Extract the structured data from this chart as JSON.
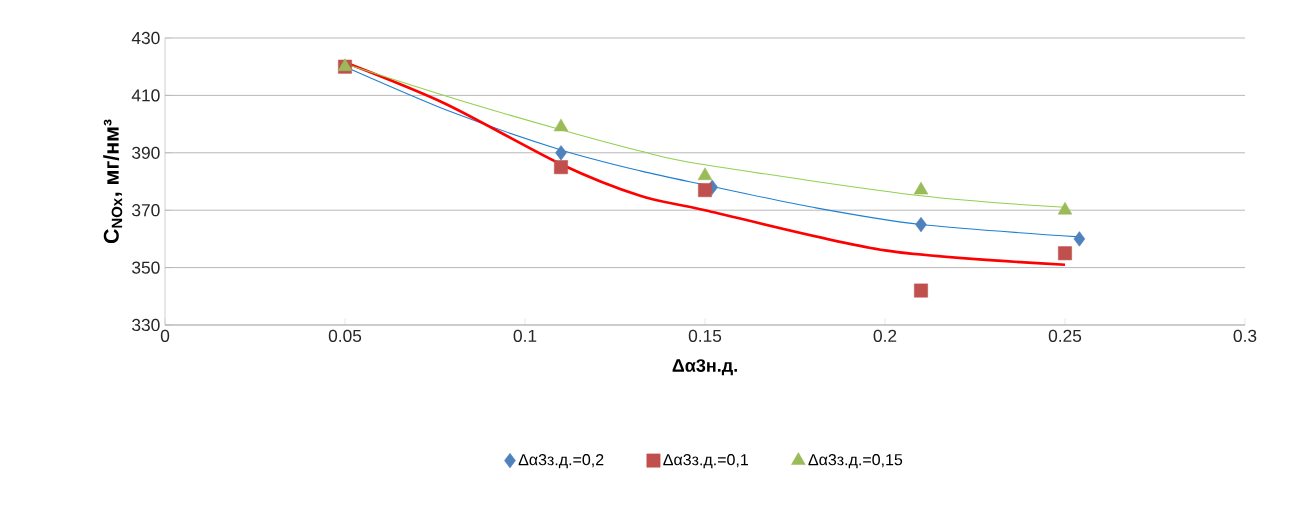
{
  "chart_data": {
    "type": "scatter",
    "xlabel": "Δα3н.д.",
    "ylabel": "C$_{NOx}$, мг/нм³",
    "xlim": [
      0,
      0.3
    ],
    "xticks": [
      0,
      0.05,
      0.1,
      0.15,
      0.2,
      0.25,
      0.3
    ],
    "ylim": [
      330,
      430
    ],
    "yticks": [
      330,
      350,
      370,
      390,
      410,
      430
    ],
    "grid": "y",
    "legend": "bottom",
    "series": [
      {
        "name": "Δα3з.д.=0,2",
        "marker": "diamond",
        "color": "#4f81bd",
        "x": [
          0.11,
          0.152,
          0.21,
          0.254
        ],
        "values": [
          390,
          378,
          365,
          360
        ]
      },
      {
        "name": "Δα3з.д.=0,1",
        "marker": "square",
        "color": "#c0504d",
        "x": [
          0.05,
          0.11,
          0.15,
          0.21,
          0.25
        ],
        "values": [
          420,
          385,
          377,
          342,
          355
        ]
      },
      {
        "name": "Δα3з.д.=0,15",
        "marker": "triangle",
        "color": "#9bbb59",
        "x": [
          0.05,
          0.11,
          0.15,
          0.21,
          0.25
        ],
        "values": [
          420,
          399,
          382,
          377,
          370
        ]
      },
      {
        "type": "line",
        "marker": "none",
        "color": "#1f7fd0",
        "x": [
          0.05,
          0.08,
          0.11,
          0.132,
          0.15,
          0.18,
          0.21,
          0.254
        ],
        "values": [
          420,
          404,
          391,
          383.7,
          378.8,
          371,
          365,
          360.7
        ]
      },
      {
        "type": "line",
        "marker": "none",
        "color": "#ff0000",
        "x": [
          0.051,
          0.078,
          0.11,
          0.132,
          0.15,
          0.2,
          0.25
        ],
        "values": [
          421,
          407,
          386,
          375,
          370,
          356,
          351
        ]
      },
      {
        "type": "line",
        "marker": "none",
        "color": "#92d050",
        "x": [
          0.05,
          0.08,
          0.11,
          0.132,
          0.15,
          0.21,
          0.25
        ],
        "values": [
          421,
          409,
          398,
          390.6,
          385.8,
          375,
          371
        ]
      }
    ]
  }
}
